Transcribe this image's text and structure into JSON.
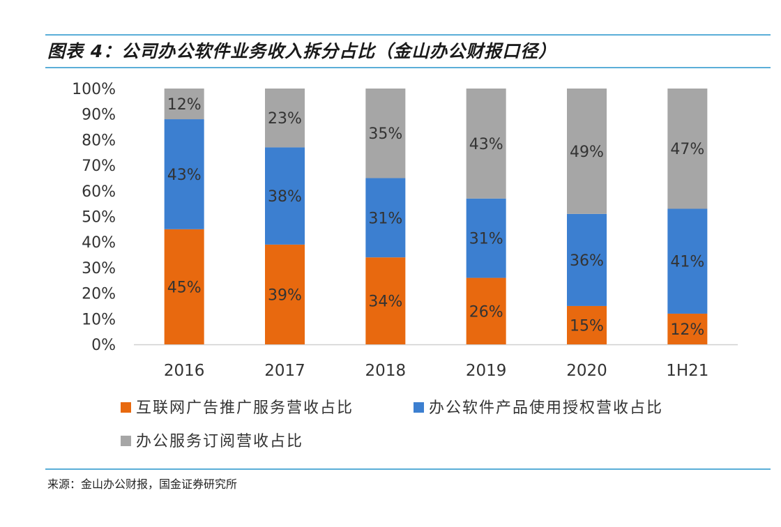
{
  "title": "图表 4：公司办公软件业务收入拆分占比（金山办公财报口径）",
  "source": "来源：金山办公财报，国金证券研究所",
  "chart_data": {
    "type": "bar",
    "stacked": true,
    "categories": [
      "2016",
      "2017",
      "2018",
      "2019",
      "2020",
      "1H21"
    ],
    "series": [
      {
        "name": "互联网广告推广服务营收占比",
        "color": "#e8690f",
        "values": [
          45,
          39,
          34,
          26,
          15,
          12
        ]
      },
      {
        "name": "办公软件产品使用授权营收占比",
        "color": "#3c7fd0",
        "values": [
          43,
          38,
          31,
          31,
          36,
          41
        ]
      },
      {
        "name": "办公服务订阅营收占比",
        "color": "#a6a6a6",
        "values": [
          12,
          23,
          35,
          43,
          49,
          47
        ]
      }
    ],
    "ylim": [
      0,
      100
    ],
    "yticks": [
      "0%",
      "10%",
      "20%",
      "30%",
      "40%",
      "50%",
      "60%",
      "70%",
      "80%",
      "90%",
      "100%"
    ],
    "value_suffix": "%",
    "grid": false,
    "legend_position": "bottom"
  }
}
